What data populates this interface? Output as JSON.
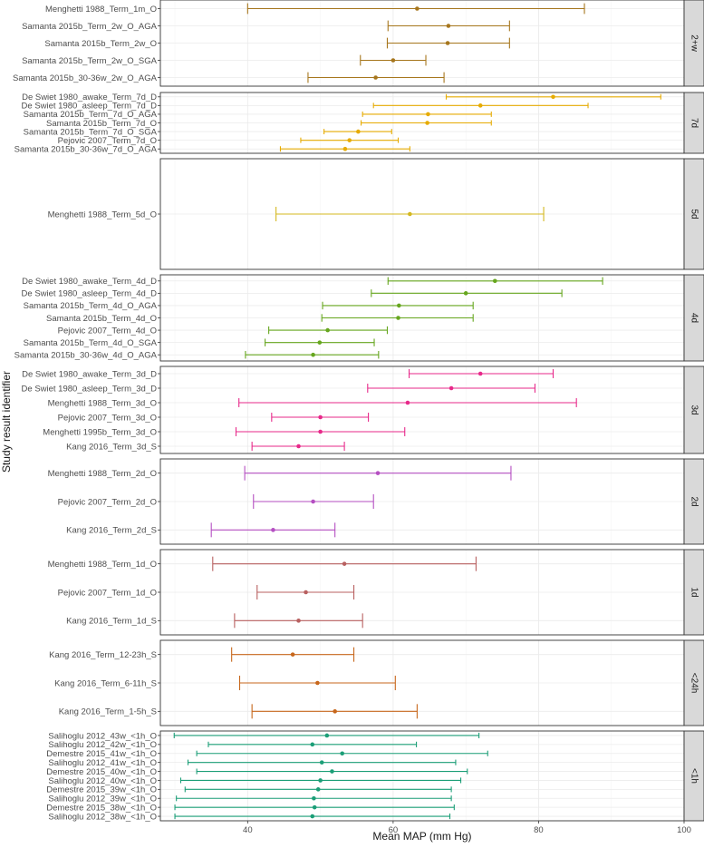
{
  "chart_data": {
    "type": "forest",
    "xlabel": "Mean MAP (mm Hg)",
    "ylabel": "Study result identifier",
    "xlim": [
      28,
      100
    ],
    "xticks": [
      40,
      60,
      80,
      100
    ],
    "grid": true,
    "panels": [
      {
        "label": "2+w",
        "color": "#a6761d",
        "rows": [
          {
            "id": "Menghetti 1988_Term_1m_O",
            "mean": 63.3,
            "lo": 40.0,
            "hi": 86.3
          },
          {
            "id": "Samanta 2015b_Term_2w_O_AGA",
            "mean": 67.6,
            "lo": 59.3,
            "hi": 76.0
          },
          {
            "id": "Samanta 2015b_Term_2w_O",
            "mean": 67.5,
            "lo": 59.2,
            "hi": 76.0
          },
          {
            "id": "Samanta 2015b_Term_2w_O_SGA",
            "mean": 60.0,
            "lo": 55.5,
            "hi": 64.5
          },
          {
            "id": "Samanta 2015b_30-36w_2w_O_AGA",
            "mean": 57.6,
            "lo": 48.3,
            "hi": 67.0
          }
        ]
      },
      {
        "label": "7d",
        "color": "#e6ab02",
        "rows": [
          {
            "id": "De Swiet 1980_awake_Term_7d_D",
            "mean": 82.0,
            "lo": 67.3,
            "hi": 96.8
          },
          {
            "id": "De Swiet 1980_asleep_Term_7d_D",
            "mean": 72.0,
            "lo": 57.3,
            "hi": 86.8
          },
          {
            "id": "Samanta 2015b_Term_7d_O_AGA",
            "mean": 64.8,
            "lo": 55.8,
            "hi": 73.5
          },
          {
            "id": "Samanta 2015b_Term_7d_O",
            "mean": 64.7,
            "lo": 55.6,
            "hi": 73.5
          },
          {
            "id": "Samanta 2015b_Term_7d_O_SGA",
            "mean": 55.2,
            "lo": 50.5,
            "hi": 59.8
          },
          {
            "id": "Pejovic 2007_Term_7d_O",
            "mean": 54.0,
            "lo": 47.3,
            "hi": 60.7
          },
          {
            "id": "Samanta 2015b_30-36w_7d_O_AGA",
            "mean": 53.4,
            "lo": 44.5,
            "hi": 62.3
          }
        ]
      },
      {
        "label": "5d",
        "color": "#d4b81f",
        "rows": [
          {
            "id": "Menghetti 1988_Term_5d_O",
            "mean": 62.3,
            "lo": 43.9,
            "hi": 80.7
          }
        ]
      },
      {
        "label": "4d",
        "color": "#66a61e",
        "rows": [
          {
            "id": "De Swiet 1980_awake_Term_4d_D",
            "mean": 74.0,
            "lo": 59.3,
            "hi": 88.8
          },
          {
            "id": "De Swiet 1980_asleep_Term_4d_D",
            "mean": 70.0,
            "lo": 57.0,
            "hi": 83.2
          },
          {
            "id": "Samanta 2015b_Term_4d_O_AGA",
            "mean": 60.8,
            "lo": 50.3,
            "hi": 71.0
          },
          {
            "id": "Samanta 2015b_Term_4d_O",
            "mean": 60.7,
            "lo": 50.2,
            "hi": 71.0
          },
          {
            "id": "Pejovic 2007_Term_4d_O",
            "mean": 51.0,
            "lo": 42.9,
            "hi": 59.2
          },
          {
            "id": "Samanta 2015b_Term_4d_O_SGA",
            "mean": 49.9,
            "lo": 42.4,
            "hi": 57.4
          },
          {
            "id": "Samanta 2015b_30-36w_4d_O_AGA",
            "mean": 49.0,
            "lo": 39.7,
            "hi": 58.0
          }
        ]
      },
      {
        "label": "3d",
        "color": "#e7298a",
        "rows": [
          {
            "id": "De Swiet 1980_awake_Term_3d_D",
            "mean": 72.0,
            "lo": 62.2,
            "hi": 82.0
          },
          {
            "id": "De Swiet 1980_asleep_Term_3d_D",
            "mean": 68.0,
            "lo": 56.5,
            "hi": 79.5
          },
          {
            "id": "Menghetti 1988_Term_3d_O",
            "mean": 62.0,
            "lo": 38.8,
            "hi": 85.2
          },
          {
            "id": "Pejovic 2007_Term_3d_O",
            "mean": 50.0,
            "lo": 43.3,
            "hi": 56.6
          },
          {
            "id": "Menghetti 1995b_Term_3d_O",
            "mean": 50.0,
            "lo": 38.4,
            "hi": 61.6
          },
          {
            "id": "Kang 2016_Term_3d_S",
            "mean": 47.0,
            "lo": 40.6,
            "hi": 53.3
          }
        ]
      },
      {
        "label": "2d",
        "color": "#b54fc2",
        "rows": [
          {
            "id": "Menghetti 1988_Term_2d_O",
            "mean": 57.9,
            "lo": 39.6,
            "hi": 76.2
          },
          {
            "id": "Pejovic 2007_Term_2d_O",
            "mean": 49.0,
            "lo": 40.8,
            "hi": 57.3
          },
          {
            "id": "Kang 2016_Term_2d_S",
            "mean": 43.5,
            "lo": 35.0,
            "hi": 52.0
          }
        ]
      },
      {
        "label": "1d",
        "color": "#b86060",
        "rows": [
          {
            "id": "Menghetti 1988_Term_1d_O",
            "mean": 53.3,
            "lo": 35.2,
            "hi": 71.4
          },
          {
            "id": "Pejovic 2007_Term_1d_O",
            "mean": 48.0,
            "lo": 41.3,
            "hi": 54.6
          },
          {
            "id": "Kang 2016_Term_1d_S",
            "mean": 47.0,
            "lo": 38.2,
            "hi": 55.8
          }
        ]
      },
      {
        "label": "<24h",
        "color": "#c7671c",
        "rows": [
          {
            "id": "Kang 2016_Term_12-23h_S",
            "mean": 46.2,
            "lo": 37.8,
            "hi": 54.6
          },
          {
            "id": "Kang 2016_Term_6-11h_S",
            "mean": 49.6,
            "lo": 38.9,
            "hi": 60.3
          },
          {
            "id": "Kang 2016_Term_1-5h_S",
            "mean": 52.0,
            "lo": 40.6,
            "hi": 63.3
          }
        ]
      },
      {
        "label": "<1h",
        "color": "#1b9e77",
        "rows": [
          {
            "id": "Salihoglu 2012_43w_<1h_O",
            "mean": 50.9,
            "lo": 29.9,
            "hi": 71.8
          },
          {
            "id": "Salihoglu 2012_42w_<1h_O",
            "mean": 48.9,
            "lo": 34.6,
            "hi": 63.2
          },
          {
            "id": "Demestre 2015_41w_<1h_O",
            "mean": 53.0,
            "lo": 33.0,
            "hi": 73.0
          },
          {
            "id": "Salihoglu 2012_41w_<1h_O",
            "mean": 50.2,
            "lo": 31.8,
            "hi": 68.6
          },
          {
            "id": "Demestre 2015_40w_<1h_O",
            "mean": 51.6,
            "lo": 33.0,
            "hi": 70.2
          },
          {
            "id": "Salihoglu 2012_40w_<1h_O",
            "mean": 50.0,
            "lo": 30.8,
            "hi": 69.3
          },
          {
            "id": "Demestre 2015_39w_<1h_O",
            "mean": 49.7,
            "lo": 31.4,
            "hi": 68.0
          },
          {
            "id": "Salihoglu 2012_39w_<1h_O",
            "mean": 49.1,
            "lo": 30.2,
            "hi": 68.0
          },
          {
            "id": "Demestre 2015_38w_<1h_O",
            "mean": 49.2,
            "lo": 30.0,
            "hi": 68.4
          },
          {
            "id": "Salihoglu 2012_38w_<1h_O",
            "mean": 48.9,
            "lo": 30.0,
            "hi": 67.8
          }
        ]
      }
    ]
  }
}
